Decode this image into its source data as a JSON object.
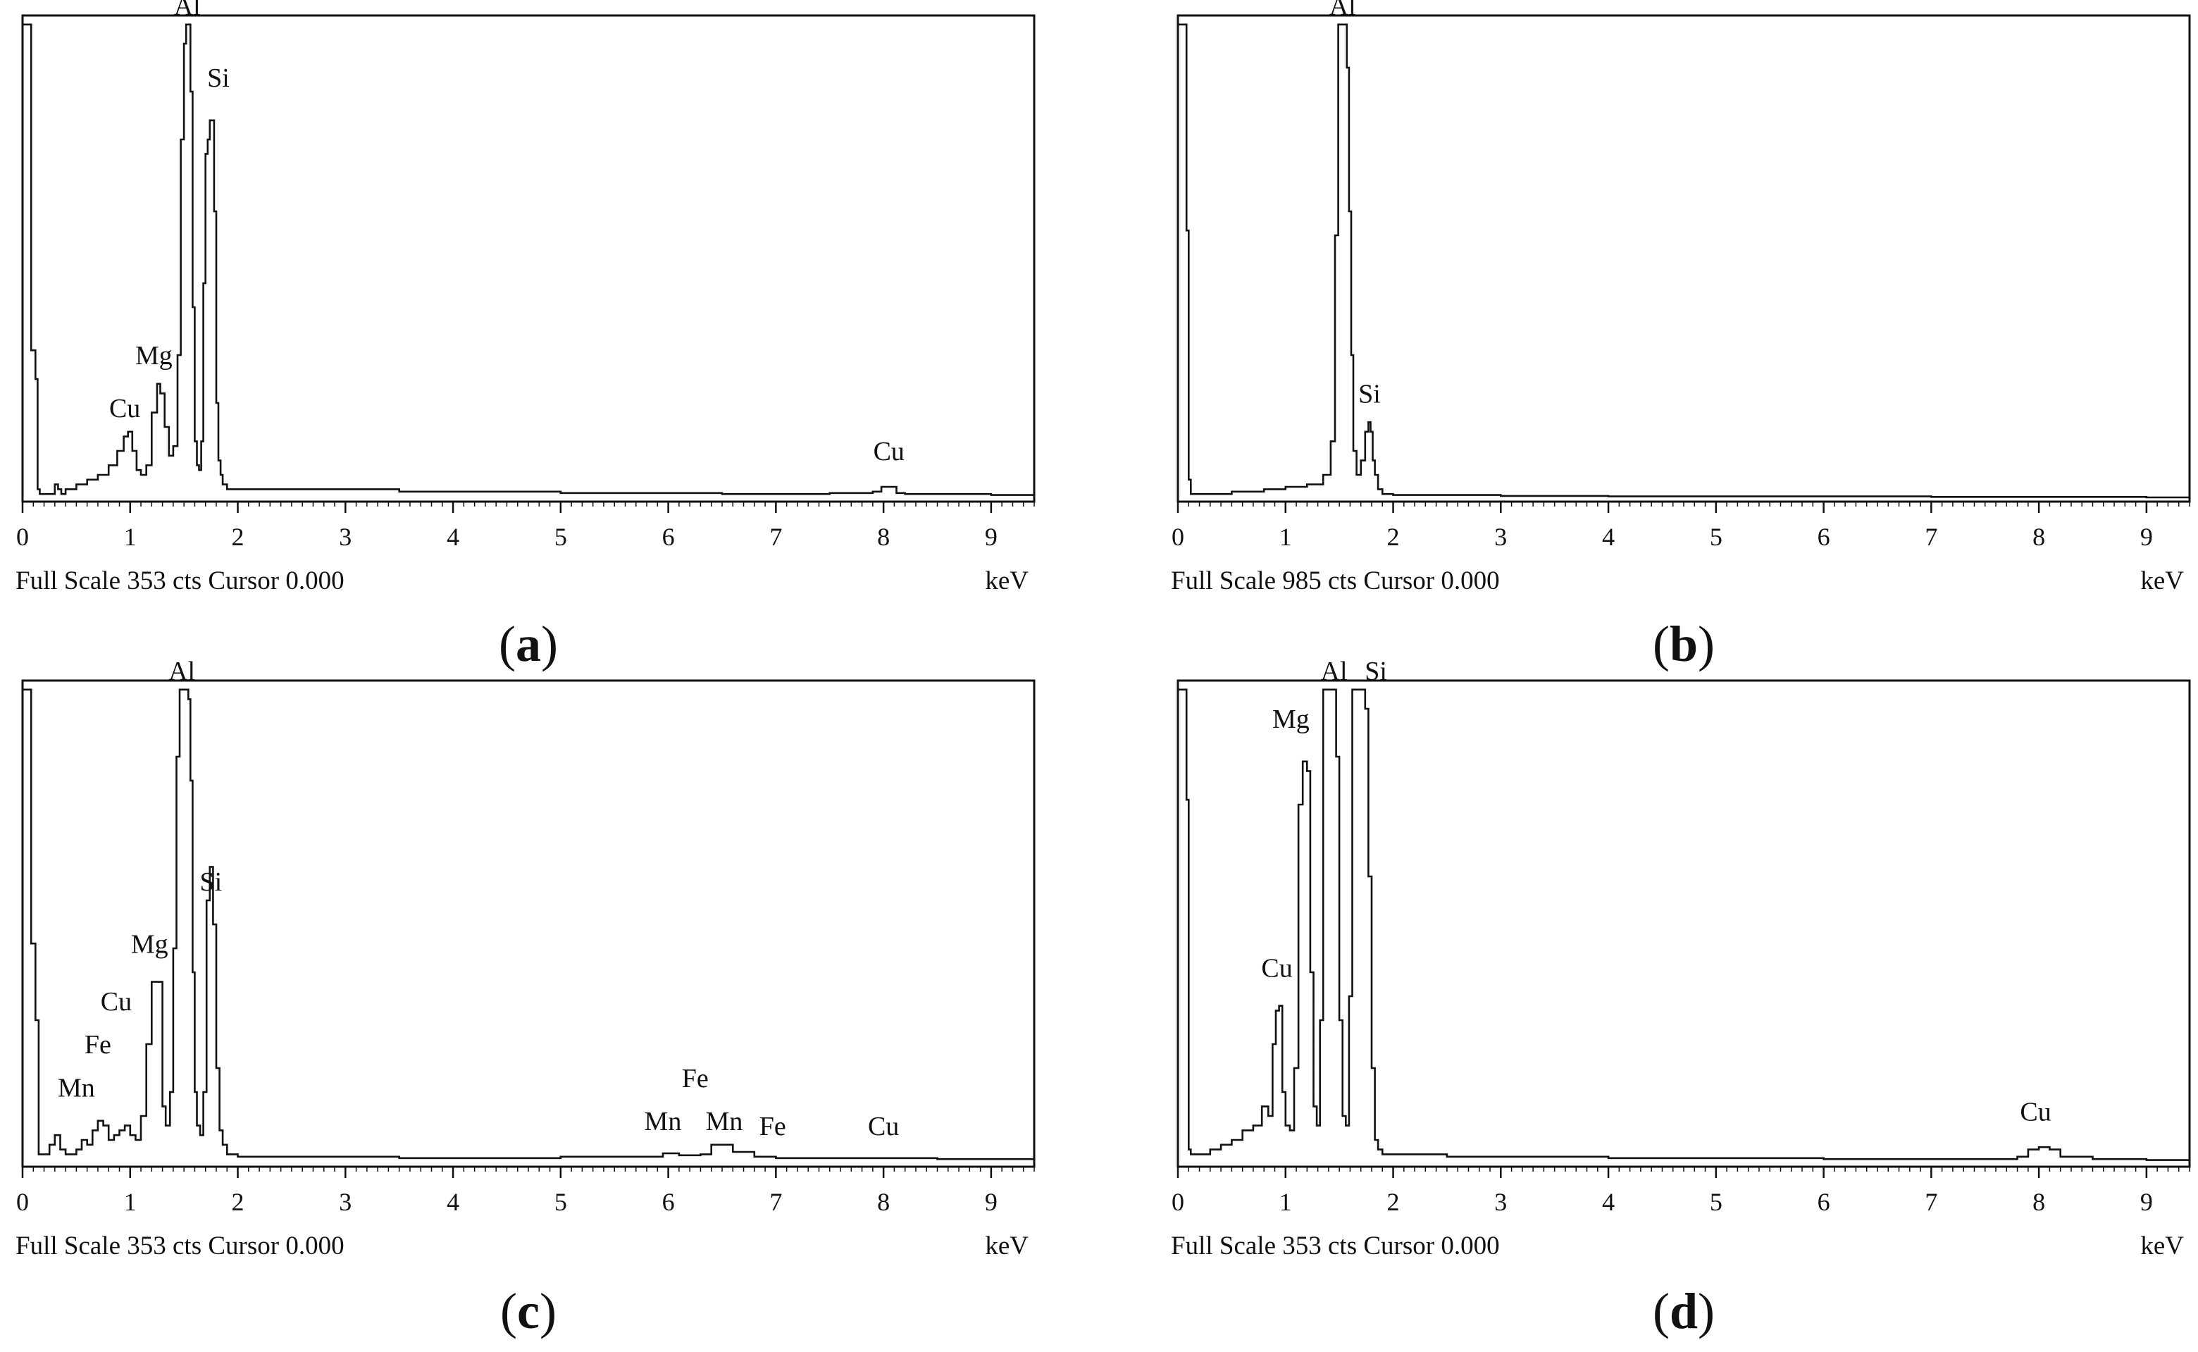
{
  "chart_data": [
    {
      "type": "line",
      "panel_label": "a",
      "footer": "Full Scale 353 cts Cursor  0.000",
      "unit": "keV",
      "xlim": [
        0,
        9.4
      ],
      "xticks": [
        "0",
        "1",
        "2",
        "3",
        "4",
        "5",
        "6",
        "7",
        "8",
        "9"
      ],
      "series": [
        {
          "x": [
            0.0,
            0.02,
            0.04,
            0.06,
            0.08,
            0.1,
            0.12,
            0.14,
            0.16,
            0.2,
            0.25,
            0.3,
            0.33,
            0.36,
            0.4,
            0.5,
            0.6,
            0.7,
            0.8,
            0.88,
            0.94,
            0.98,
            1.02,
            1.06,
            1.1,
            1.15,
            1.2,
            1.25,
            1.28,
            1.32,
            1.36,
            1.4,
            1.44,
            1.47,
            1.5,
            1.52,
            1.54,
            1.56,
            1.58,
            1.6,
            1.62,
            1.64,
            1.66,
            1.68,
            1.7,
            1.72,
            1.74,
            1.76,
            1.78,
            1.8,
            1.82,
            1.84,
            1.86,
            1.9,
            1.95,
            2.0,
            2.2,
            2.5,
            3.0,
            3.5,
            4.0,
            4.5,
            5.0,
            5.5,
            6.0,
            6.5,
            7.0,
            7.5,
            7.9,
            7.98,
            8.05,
            8.12,
            8.2,
            8.5,
            9.0,
            9.4
          ],
          "y": [
            0.99,
            0.99,
            0.99,
            0.99,
            0.31,
            0.31,
            0.25,
            0.02,
            0.01,
            0.01,
            0.01,
            0.03,
            0.02,
            0.01,
            0.02,
            0.03,
            0.04,
            0.05,
            0.07,
            0.1,
            0.13,
            0.14,
            0.1,
            0.06,
            0.05,
            0.07,
            0.18,
            0.24,
            0.22,
            0.15,
            0.09,
            0.11,
            0.3,
            0.75,
            0.95,
            0.99,
            0.99,
            0.85,
            0.4,
            0.12,
            0.07,
            0.06,
            0.12,
            0.45,
            0.72,
            0.75,
            0.79,
            0.79,
            0.6,
            0.2,
            0.08,
            0.05,
            0.03,
            0.02,
            0.02,
            0.02,
            0.02,
            0.02,
            0.02,
            0.015,
            0.015,
            0.015,
            0.012,
            0.012,
            0.012,
            0.01,
            0.01,
            0.012,
            0.015,
            0.025,
            0.025,
            0.012,
            0.01,
            0.01,
            0.008,
            0.008
          ]
        }
      ],
      "annotations": [
        {
          "label": "Al",
          "x": 1.53,
          "y": 0.99
        },
        {
          "label": "Si",
          "x": 1.82,
          "y": 0.84
        },
        {
          "label": "Mg",
          "x": 1.22,
          "y": 0.26
        },
        {
          "label": "Cu",
          "x": 0.95,
          "y": 0.15
        },
        {
          "label": "Cu",
          "x": 8.05,
          "y": 0.06
        }
      ]
    },
    {
      "type": "line",
      "panel_label": "b",
      "footer": "Full Scale 985 cts Cursor  0.000",
      "unit": "keV",
      "xlim": [
        0,
        9.4
      ],
      "xticks": [
        "0",
        "1",
        "2",
        "3",
        "4",
        "5",
        "6",
        "7",
        "8",
        "9"
      ],
      "series": [
        {
          "x": [
            0.0,
            0.02,
            0.04,
            0.06,
            0.08,
            0.1,
            0.12,
            0.15,
            0.2,
            0.3,
            0.5,
            0.8,
            1.0,
            1.2,
            1.35,
            1.42,
            1.46,
            1.49,
            1.51,
            1.53,
            1.55,
            1.57,
            1.59,
            1.61,
            1.63,
            1.66,
            1.7,
            1.74,
            1.77,
            1.79,
            1.81,
            1.83,
            1.86,
            1.9,
            2.0,
            2.5,
            3.0,
            4.0,
            5.0,
            6.0,
            7.0,
            8.0,
            9.0,
            9.4
          ],
          "y": [
            0.99,
            0.99,
            0.99,
            0.99,
            0.56,
            0.04,
            0.01,
            0.01,
            0.01,
            0.01,
            0.015,
            0.02,
            0.025,
            0.03,
            0.05,
            0.12,
            0.55,
            0.99,
            0.99,
            0.99,
            0.99,
            0.9,
            0.6,
            0.3,
            0.1,
            0.05,
            0.08,
            0.14,
            0.16,
            0.14,
            0.08,
            0.05,
            0.02,
            0.01,
            0.008,
            0.008,
            0.006,
            0.005,
            0.005,
            0.005,
            0.004,
            0.004,
            0.003,
            0.003
          ]
        }
      ],
      "annotations": [
        {
          "label": "Al",
          "x": 1.53,
          "y": 0.99
        },
        {
          "label": "Si",
          "x": 1.78,
          "y": 0.18
        }
      ]
    },
    {
      "type": "line",
      "panel_label": "c",
      "footer": "Full Scale 353 cts Cursor  0.000",
      "unit": "keV",
      "xlim": [
        0,
        9.4
      ],
      "xticks": [
        "0",
        "1",
        "2",
        "3",
        "4",
        "5",
        "6",
        "7",
        "8",
        "9"
      ],
      "series": [
        {
          "x": [
            0.0,
            0.02,
            0.04,
            0.06,
            0.08,
            0.1,
            0.12,
            0.15,
            0.2,
            0.25,
            0.3,
            0.35,
            0.4,
            0.5,
            0.55,
            0.6,
            0.65,
            0.7,
            0.75,
            0.8,
            0.85,
            0.9,
            0.95,
            1.0,
            1.05,
            1.1,
            1.15,
            1.2,
            1.25,
            1.3,
            1.33,
            1.37,
            1.4,
            1.43,
            1.46,
            1.49,
            1.52,
            1.54,
            1.56,
            1.58,
            1.6,
            1.62,
            1.65,
            1.68,
            1.71,
            1.74,
            1.77,
            1.8,
            1.83,
            1.86,
            1.9,
            2.0,
            2.5,
            3.0,
            3.5,
            4.0,
            4.5,
            5.0,
            5.5,
            5.8,
            5.95,
            6.1,
            6.3,
            6.4,
            6.5,
            6.6,
            6.8,
            7.0,
            7.5,
            8.0,
            8.5,
            9.0,
            9.4
          ],
          "y": [
            0.99,
            0.99,
            0.99,
            0.99,
            0.46,
            0.46,
            0.3,
            0.02,
            0.02,
            0.04,
            0.06,
            0.03,
            0.02,
            0.03,
            0.05,
            0.04,
            0.07,
            0.09,
            0.08,
            0.05,
            0.06,
            0.07,
            0.08,
            0.06,
            0.05,
            0.1,
            0.25,
            0.38,
            0.38,
            0.12,
            0.08,
            0.15,
            0.45,
            0.85,
            0.99,
            0.99,
            0.99,
            0.97,
            0.8,
            0.4,
            0.15,
            0.08,
            0.06,
            0.15,
            0.55,
            0.62,
            0.5,
            0.2,
            0.07,
            0.04,
            0.02,
            0.015,
            0.015,
            0.015,
            0.012,
            0.012,
            0.012,
            0.015,
            0.015,
            0.015,
            0.022,
            0.018,
            0.02,
            0.04,
            0.04,
            0.025,
            0.015,
            0.012,
            0.012,
            0.012,
            0.01,
            0.01,
            0.01
          ]
        }
      ],
      "annotations": [
        {
          "label": "Al",
          "x": 1.48,
          "y": 0.99
        },
        {
          "label": "Si",
          "x": 1.75,
          "y": 0.55
        },
        {
          "label": "Mg",
          "x": 1.18,
          "y": 0.42
        },
        {
          "label": "Cu",
          "x": 0.87,
          "y": 0.3
        },
        {
          "label": "Fe",
          "x": 0.7,
          "y": 0.21
        },
        {
          "label": "Mn",
          "x": 0.5,
          "y": 0.12
        },
        {
          "label": "Mn",
          "x": 5.95,
          "y": 0.05
        },
        {
          "label": "Fe",
          "x": 6.25,
          "y": 0.14
        },
        {
          "label": "Mn",
          "x": 6.52,
          "y": 0.05
        },
        {
          "label": "Fe",
          "x": 6.97,
          "y": 0.04
        },
        {
          "label": "Cu",
          "x": 8.0,
          "y": 0.04
        }
      ]
    },
    {
      "type": "line",
      "panel_label": "d",
      "footer": "Full Scale 353 cts Cursor  0.000",
      "unit": "keV",
      "xlim": [
        0,
        9.4
      ],
      "xticks": [
        "0",
        "1",
        "2",
        "3",
        "4",
        "5",
        "6",
        "7",
        "8",
        "9"
      ],
      "series": [
        {
          "x": [
            0.0,
            0.02,
            0.04,
            0.06,
            0.08,
            0.1,
            0.12,
            0.15,
            0.2,
            0.3,
            0.4,
            0.5,
            0.6,
            0.7,
            0.78,
            0.84,
            0.88,
            0.91,
            0.94,
            0.97,
            1.0,
            1.04,
            1.08,
            1.12,
            1.16,
            1.2,
            1.23,
            1.26,
            1.29,
            1.32,
            1.35,
            1.38,
            1.41,
            1.44,
            1.47,
            1.5,
            1.53,
            1.56,
            1.59,
            1.62,
            1.65,
            1.68,
            1.71,
            1.74,
            1.77,
            1.8,
            1.83,
            1.86,
            1.9,
            1.95,
            2.0,
            2.5,
            3.0,
            3.5,
            4.0,
            5.0,
            6.0,
            7.0,
            7.8,
            7.9,
            8.0,
            8.1,
            8.2,
            8.5,
            9.0,
            9.4
          ],
          "y": [
            0.99,
            0.99,
            0.99,
            0.99,
            0.76,
            0.03,
            0.02,
            0.02,
            0.02,
            0.03,
            0.04,
            0.05,
            0.07,
            0.08,
            0.12,
            0.1,
            0.25,
            0.32,
            0.33,
            0.15,
            0.08,
            0.07,
            0.2,
            0.75,
            0.84,
            0.82,
            0.4,
            0.12,
            0.08,
            0.3,
            0.99,
            0.99,
            0.99,
            0.99,
            0.85,
            0.3,
            0.1,
            0.08,
            0.35,
            0.99,
            0.99,
            0.99,
            0.99,
            0.95,
            0.6,
            0.2,
            0.05,
            0.03,
            0.02,
            0.02,
            0.02,
            0.015,
            0.015,
            0.015,
            0.012,
            0.012,
            0.01,
            0.01,
            0.015,
            0.03,
            0.035,
            0.03,
            0.015,
            0.01,
            0.008,
            0.008
          ]
        }
      ],
      "annotations": [
        {
          "label": "Mg",
          "x": 1.05,
          "y": 0.89
        },
        {
          "label": "Al",
          "x": 1.45,
          "y": 0.99
        },
        {
          "label": "Si",
          "x": 1.84,
          "y": 0.99
        },
        {
          "label": "Cu",
          "x": 0.92,
          "y": 0.37
        },
        {
          "label": "Cu",
          "x": 7.97,
          "y": 0.07
        }
      ]
    }
  ]
}
